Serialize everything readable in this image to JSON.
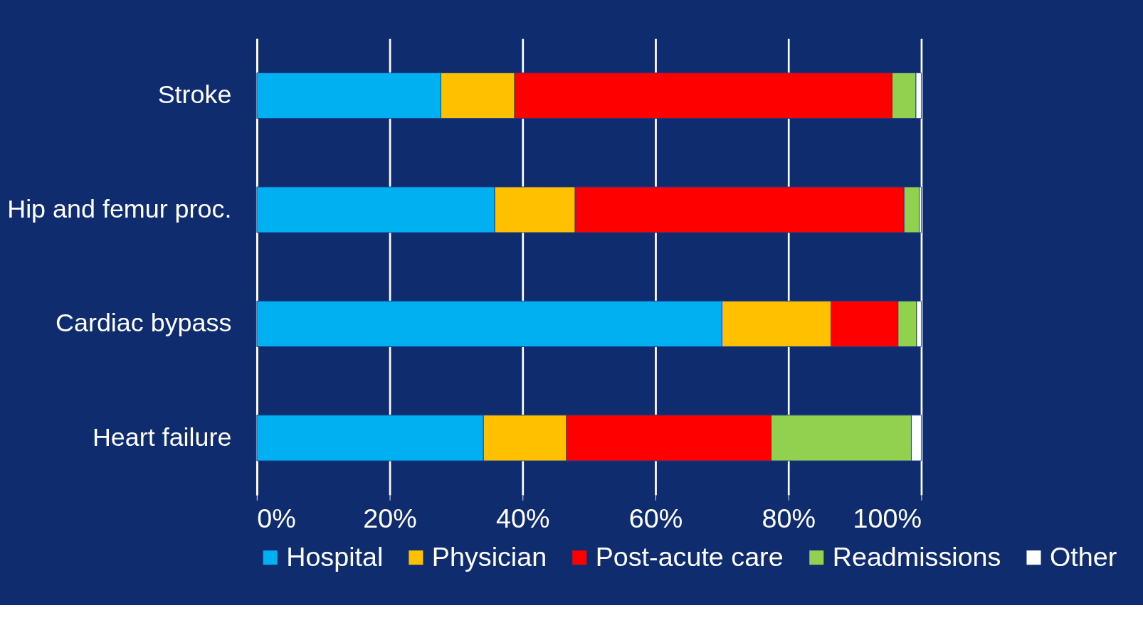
{
  "chart_data": {
    "type": "bar",
    "orientation": "horizontal",
    "stacked": true,
    "categories": [
      "Stroke",
      "Hip and femur proc.",
      "Cardiac bypass",
      "Heart failure"
    ],
    "series": [
      {
        "name": "Hospital",
        "color": "#00b0f0",
        "values": [
          27.7,
          35.8,
          70.0,
          34.1
        ]
      },
      {
        "name": "Physician",
        "color": "#ffc000",
        "values": [
          11.1,
          12.1,
          16.4,
          12.5
        ]
      },
      {
        "name": "Post-acute care",
        "color": "#ff0000",
        "values": [
          56.8,
          49.5,
          10.1,
          30.8
        ]
      },
      {
        "name": "Readmissions",
        "color": "#92d050",
        "values": [
          3.6,
          2.3,
          2.8,
          21.1
        ]
      },
      {
        "name": "Other",
        "color": "#ffffff",
        "values": [
          0.8,
          0.3,
          0.7,
          1.5
        ]
      }
    ],
    "xlim": [
      0,
      100
    ],
    "xticks": [
      {
        "value": 0,
        "label": "0%"
      },
      {
        "value": 20,
        "label": "20%"
      },
      {
        "value": 40,
        "label": "40%"
      },
      {
        "value": 60,
        "label": "60%"
      },
      {
        "value": 80,
        "label": "80%"
      },
      {
        "value": 100,
        "label": "100%"
      }
    ],
    "grid": "x",
    "legend": "bottom"
  }
}
